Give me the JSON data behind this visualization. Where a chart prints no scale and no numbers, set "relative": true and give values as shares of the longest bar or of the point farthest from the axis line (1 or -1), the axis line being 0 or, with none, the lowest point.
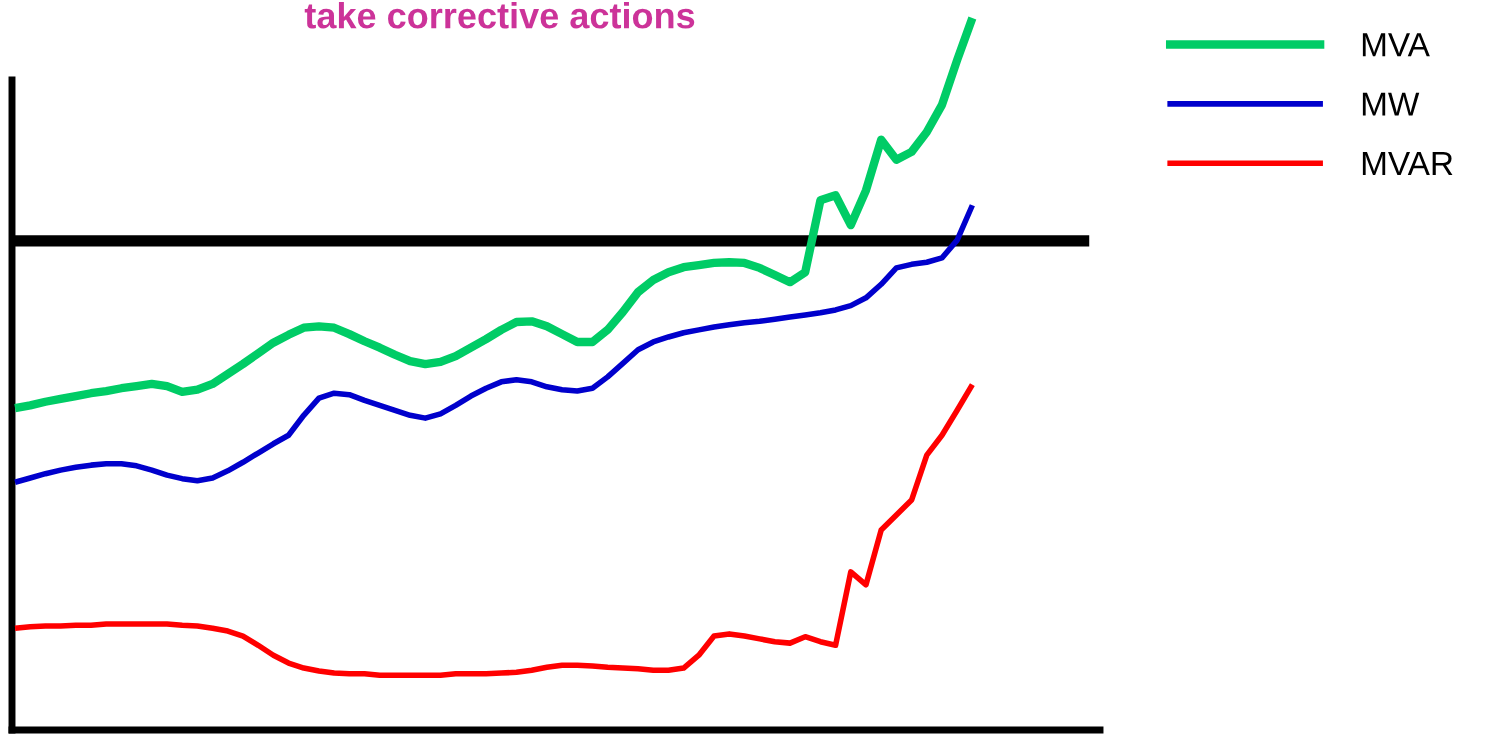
{
  "chart_data": {
    "type": "line",
    "title": "take corrective actions",
    "relative": true,
    "legend": "top right",
    "grid": false,
    "categories": [
      null,
      null,
      null,
      null,
      null,
      null,
      null,
      null,
      null,
      null,
      null,
      null,
      null,
      null,
      null,
      null,
      null,
      null,
      null,
      null,
      null,
      null,
      null,
      null,
      null,
      null,
      null,
      null,
      null,
      null,
      null,
      null,
      null,
      null,
      null,
      null,
      null,
      null,
      null,
      null,
      null,
      null,
      null,
      null,
      null,
      null,
      null,
      null,
      null,
      null,
      null,
      null,
      null,
      null,
      null,
      null,
      null,
      null,
      null,
      null,
      null,
      null,
      null,
      null
    ],
    "series": [
      {
        "name": "MVA",
        "color": "#00cc66",
        "values": [
          0.452,
          0.456,
          0.461,
          0.465,
          0.469,
          0.473,
          0.476,
          0.48,
          0.483,
          0.486,
          0.483,
          0.475,
          0.478,
          0.486,
          0.5,
          0.514,
          0.529,
          0.544,
          0.555,
          0.565,
          0.567,
          0.565,
          0.556,
          0.546,
          0.537,
          0.527,
          0.518,
          0.514,
          0.517,
          0.525,
          0.537,
          0.549,
          0.562,
          0.573,
          0.574,
          0.567,
          0.556,
          0.545,
          0.545,
          0.562,
          0.587,
          0.615,
          0.632,
          0.643,
          0.65,
          0.653,
          0.656,
          0.657,
          0.656,
          0.649,
          0.639,
          0.629,
          0.643,
          0.744,
          0.751,
          0.709,
          0.758,
          0.829,
          0.801,
          0.812,
          0.84,
          0.878,
          0.941,
          1.0
        ]
      },
      {
        "name": "MW",
        "color": "#0000cc",
        "values": [
          0.348,
          0.354,
          0.36,
          0.365,
          0.369,
          0.372,
          0.374,
          0.374,
          0.371,
          0.365,
          0.358,
          0.353,
          0.35,
          0.354,
          0.364,
          0.376,
          0.389,
          0.402,
          0.414,
          0.442,
          0.466,
          0.473,
          0.471,
          0.463,
          0.456,
          0.449,
          0.442,
          0.438,
          0.444,
          0.456,
          0.469,
          0.48,
          0.489,
          0.492,
          0.489,
          0.482,
          0.478,
          0.476,
          0.48,
          0.496,
          0.515,
          0.534,
          0.545,
          0.552,
          0.558,
          0.562,
          0.566,
          0.569,
          0.572,
          0.574,
          0.577,
          0.58,
          0.583,
          0.586,
          0.59,
          0.596,
          0.607,
          0.626,
          0.649,
          0.654,
          0.657,
          0.663,
          0.688,
          0.737
        ]
      },
      {
        "name": "MVAR",
        "color": "#ff0000",
        "values": [
          0.143,
          0.145,
          0.146,
          0.146,
          0.147,
          0.147,
          0.149,
          0.149,
          0.149,
          0.149,
          0.149,
          0.147,
          0.146,
          0.143,
          0.139,
          0.132,
          0.119,
          0.105,
          0.094,
          0.087,
          0.083,
          0.08,
          0.079,
          0.079,
          0.077,
          0.077,
          0.077,
          0.077,
          0.077,
          0.079,
          0.079,
          0.079,
          0.08,
          0.081,
          0.084,
          0.088,
          0.091,
          0.091,
          0.09,
          0.088,
          0.087,
          0.086,
          0.084,
          0.084,
          0.087,
          0.105,
          0.132,
          0.135,
          0.132,
          0.128,
          0.124,
          0.122,
          0.131,
          0.124,
          0.119,
          0.222,
          0.204,
          0.281,
          0.302,
          0.323,
          0.386,
          0.414,
          0.449,
          0.485
        ]
      }
    ],
    "ref_lines": [
      {
        "axis": "y",
        "value": 0.687,
        "color": "#000000"
      }
    ]
  }
}
